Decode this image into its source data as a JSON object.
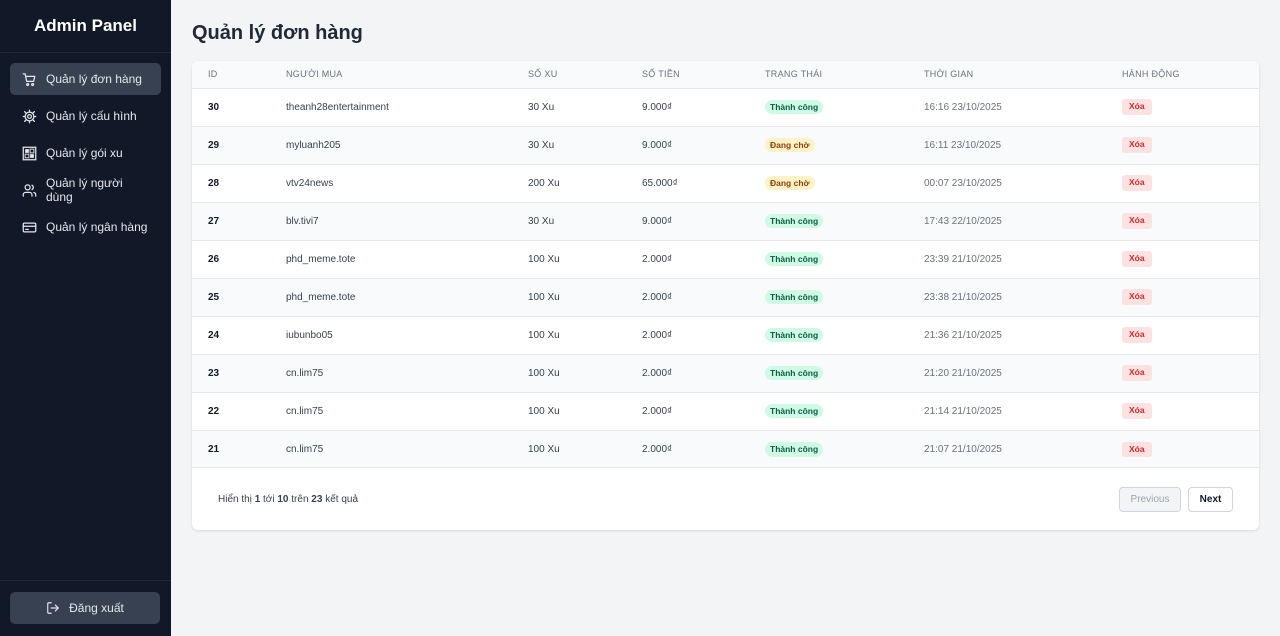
{
  "sidebar": {
    "brand": "Admin Panel",
    "items": [
      {
        "label": "Quản lý đơn hàng",
        "icon": "cart-icon",
        "active": true
      },
      {
        "label": "Quản lý cấu hình",
        "icon": "gear-icon",
        "active": false
      },
      {
        "label": "Quản lý gói xu",
        "icon": "package-icon",
        "active": false
      },
      {
        "label": "Quản lý người dùng",
        "icon": "users-icon",
        "active": false
      },
      {
        "label": "Quản lý ngân hàng",
        "icon": "credit-card-icon",
        "active": false
      }
    ],
    "logout_label": "Đăng xuất"
  },
  "page": {
    "title": "Quản lý đơn hàng"
  },
  "table": {
    "columns": [
      "ID",
      "Người mua",
      "Số xu",
      "Số tiền",
      "Trạng thái",
      "Thời gian",
      "Hành động"
    ],
    "delete_label": "Xóa",
    "rows": [
      {
        "id": "30",
        "buyer": "theanh28entertainment",
        "coins": "30 Xu",
        "amount": "9.000₫",
        "status": "Thành công",
        "status_type": "success",
        "time": "16:16 23/10/2025"
      },
      {
        "id": "29",
        "buyer": "myluanh205",
        "coins": "30 Xu",
        "amount": "9.000₫",
        "status": "Đang chờ",
        "status_type": "pending",
        "time": "16:11 23/10/2025"
      },
      {
        "id": "28",
        "buyer": "vtv24news",
        "coins": "200 Xu",
        "amount": "65.000₫",
        "status": "Đang chờ",
        "status_type": "pending",
        "time": "00:07 23/10/2025"
      },
      {
        "id": "27",
        "buyer": "blv.tivi7",
        "coins": "30 Xu",
        "amount": "9.000₫",
        "status": "Thành công",
        "status_type": "success",
        "time": "17:43 22/10/2025"
      },
      {
        "id": "26",
        "buyer": "phd_meme.tote",
        "coins": "100 Xu",
        "amount": "2.000₫",
        "status": "Thành công",
        "status_type": "success",
        "time": "23:39 21/10/2025"
      },
      {
        "id": "25",
        "buyer": "phd_meme.tote",
        "coins": "100 Xu",
        "amount": "2.000₫",
        "status": "Thành công",
        "status_type": "success",
        "time": "23:38 21/10/2025"
      },
      {
        "id": "24",
        "buyer": "iubunbo05",
        "coins": "100 Xu",
        "amount": "2.000₫",
        "status": "Thành công",
        "status_type": "success",
        "time": "21:36 21/10/2025"
      },
      {
        "id": "23",
        "buyer": "cn.lim75",
        "coins": "100 Xu",
        "amount": "2.000₫",
        "status": "Thành công",
        "status_type": "success",
        "time": "21:20 21/10/2025"
      },
      {
        "id": "22",
        "buyer": "cn.lim75",
        "coins": "100 Xu",
        "amount": "2.000₫",
        "status": "Thành công",
        "status_type": "success",
        "time": "21:14 21/10/2025"
      },
      {
        "id": "21",
        "buyer": "cn.lim75",
        "coins": "100 Xu",
        "amount": "2.000₫",
        "status": "Thành công",
        "status_type": "success",
        "time": "21:07 21/10/2025"
      }
    ]
  },
  "pagination": {
    "prefix": "Hiển thị",
    "from": "1",
    "to_word": "tới",
    "to": "10",
    "of_word": "trên",
    "total": "23",
    "suffix": "kết quả",
    "prev_label": "Previous",
    "next_label": "Next"
  },
  "colors": {
    "sidebar_bg": "#111827",
    "active_item_bg": "#374151",
    "success_bg": "#d1fae5",
    "success_text": "#065f46",
    "pending_bg": "#fef3c7",
    "pending_text": "#92400e",
    "delete_bg": "#fee2e2",
    "delete_text": "#dc2626"
  }
}
